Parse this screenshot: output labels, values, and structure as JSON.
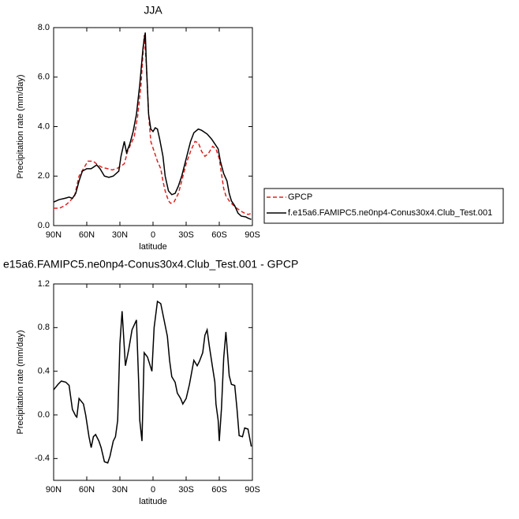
{
  "chart_data": [
    {
      "type": "line",
      "title": "JJA",
      "xlabel": "latitude",
      "ylabel": "Precipitation rate (mm/day)",
      "xlim": [
        90,
        -90
      ],
      "ylim": [
        0,
        8
      ],
      "xticks": [
        {
          "value": 90,
          "label": "90N"
        },
        {
          "value": 60,
          "label": "60N"
        },
        {
          "value": 30,
          "label": "30N"
        },
        0,
        {
          "value": -30,
          "label": "30S"
        },
        {
          "value": -60,
          "label": "60S"
        },
        {
          "value": -90,
          "label": "90S"
        }
      ],
      "yticks": [
        {
          "value": 0,
          "label": "0.0"
        },
        {
          "value": 2,
          "label": "2.0"
        },
        {
          "value": 4,
          "label": "4.0"
        },
        {
          "value": 6,
          "label": "6.0"
        },
        {
          "value": 8,
          "label": "8.0"
        }
      ],
      "grid": false,
      "legend": "right",
      "series": [
        {
          "name": "GPCP",
          "color": "#e02020",
          "style": "dashed",
          "x": [
            90,
            85,
            80,
            76,
            71,
            67,
            63,
            59,
            54,
            50,
            46,
            41,
            37,
            33,
            29,
            26,
            23,
            20,
            17,
            14,
            11,
            9,
            8,
            6,
            4,
            2,
            -1,
            -4,
            -7,
            -9,
            -11,
            -14,
            -16,
            -19,
            -23,
            -26,
            -30,
            -34,
            -38,
            -41,
            -44,
            -47,
            -50,
            -54,
            -57,
            -60,
            -64,
            -66,
            -69,
            -72,
            -76,
            -79,
            -83,
            -86,
            -90
          ],
          "values": [
            0.7,
            0.7,
            0.8,
            0.95,
            1.2,
            2.0,
            2.3,
            2.6,
            2.6,
            2.45,
            2.35,
            2.3,
            2.25,
            2.3,
            2.4,
            2.5,
            3.0,
            3.3,
            3.6,
            4.4,
            5.6,
            7.0,
            7.7,
            6.5,
            4.5,
            3.4,
            3.0,
            2.6,
            2.3,
            1.8,
            1.4,
            1.0,
            0.9,
            0.95,
            1.3,
            1.8,
            2.5,
            3.0,
            3.4,
            3.35,
            3.0,
            2.8,
            2.9,
            3.2,
            3.1,
            2.7,
            1.5,
            1.2,
            1.0,
            0.85,
            0.7,
            0.6,
            0.5,
            0.45,
            0.5
          ]
        },
        {
          "name": "f.e15a6.FAMIPC5.ne0np4-Conus30x4.Club_Test.001",
          "color": "#000000",
          "style": "solid",
          "x": [
            90,
            85,
            80,
            76,
            73,
            70,
            67,
            64,
            60,
            56,
            51,
            48,
            44,
            40,
            36,
            31,
            29,
            26,
            24,
            21,
            18,
            15,
            12,
            9,
            7,
            6,
            4,
            2,
            0,
            -2,
            -4,
            -6,
            -9,
            -11,
            -14,
            -17,
            -20,
            -23,
            -26,
            -30,
            -34,
            -37,
            -41,
            -44,
            -49,
            -53,
            -56,
            -59,
            -61,
            -64,
            -67,
            -69,
            -71,
            -74,
            -77,
            -80,
            -84,
            -86,
            -89
          ],
          "values": [
            0.95,
            1.05,
            1.1,
            1.15,
            1.1,
            1.3,
            1.8,
            2.2,
            2.3,
            2.3,
            2.45,
            2.3,
            2.0,
            1.95,
            2.0,
            2.2,
            2.8,
            3.4,
            2.95,
            3.3,
            3.8,
            4.5,
            5.7,
            7.2,
            7.8,
            6.5,
            4.5,
            3.9,
            3.8,
            3.95,
            3.9,
            3.5,
            2.8,
            2.0,
            1.4,
            1.25,
            1.3,
            1.6,
            2.0,
            2.7,
            3.4,
            3.75,
            3.9,
            3.85,
            3.7,
            3.5,
            3.3,
            3.1,
            2.6,
            2.1,
            1.8,
            1.3,
            1.0,
            0.8,
            0.5,
            0.38,
            0.35,
            0.3,
            0.25
          ]
        }
      ]
    },
    {
      "type": "line",
      "title": "e15a6.FAMIPC5.ne0np4-Conus30x4.Club_Test.001 - GPCP",
      "xlabel": "latitude",
      "ylabel": "Precipitation rate (mm/day)",
      "xlim": [
        90,
        -90
      ],
      "ylim": [
        -0.6,
        1.2
      ],
      "xticks": [
        {
          "value": 90,
          "label": "90N"
        },
        {
          "value": 60,
          "label": "60N"
        },
        {
          "value": 30,
          "label": "30N"
        },
        0,
        {
          "value": -30,
          "label": "30S"
        },
        {
          "value": -60,
          "label": "60S"
        },
        {
          "value": -90,
          "label": "90S"
        }
      ],
      "yticks": [
        -0.4,
        {
          "value": 0,
          "label": "0.0"
        },
        0.4,
        0.8,
        1.2
      ],
      "grid": false,
      "color": "#000000",
      "x": [
        90,
        86,
        83,
        79,
        76,
        73,
        70,
        69,
        67,
        63,
        61,
        58,
        56,
        54,
        52,
        49,
        47,
        44,
        41,
        39,
        36,
        34,
        32,
        30,
        28,
        25,
        22,
        19,
        15,
        13,
        12,
        10,
        8,
        5,
        1,
        -1,
        -4,
        -7,
        -9,
        -13,
        -15,
        -17,
        -20,
        -22,
        -25,
        -27,
        -30,
        -33,
        -35,
        -37,
        -40,
        -42,
        -45,
        -47,
        -49,
        -51,
        -54,
        -56,
        -57,
        -59,
        -60,
        -62,
        -64,
        -66,
        -69,
        -71,
        -74,
        -76,
        -78,
        -81,
        -83,
        -86,
        -89
      ],
      "values": [
        0.23,
        0.28,
        0.31,
        0.3,
        0.27,
        0.05,
        -0.01,
        -0.02,
        0.15,
        0.1,
        0.0,
        -0.2,
        -0.3,
        -0.2,
        -0.18,
        -0.24,
        -0.3,
        -0.43,
        -0.44,
        -0.38,
        -0.24,
        -0.2,
        -0.05,
        0.65,
        0.95,
        0.45,
        0.6,
        0.78,
        0.87,
        0.3,
        -0.05,
        -0.24,
        0.57,
        0.53,
        0.4,
        0.8,
        1.04,
        1.02,
        0.92,
        0.72,
        0.5,
        0.35,
        0.3,
        0.2,
        0.15,
        0.1,
        0.15,
        0.28,
        0.39,
        0.5,
        0.45,
        0.49,
        0.57,
        0.73,
        0.78,
        0.63,
        0.43,
        0.3,
        0.1,
        -0.05,
        -0.24,
        0.06,
        0.52,
        0.76,
        0.36,
        0.28,
        0.27,
        0.06,
        -0.19,
        -0.2,
        -0.12,
        -0.13,
        -0.29
      ]
    }
  ]
}
